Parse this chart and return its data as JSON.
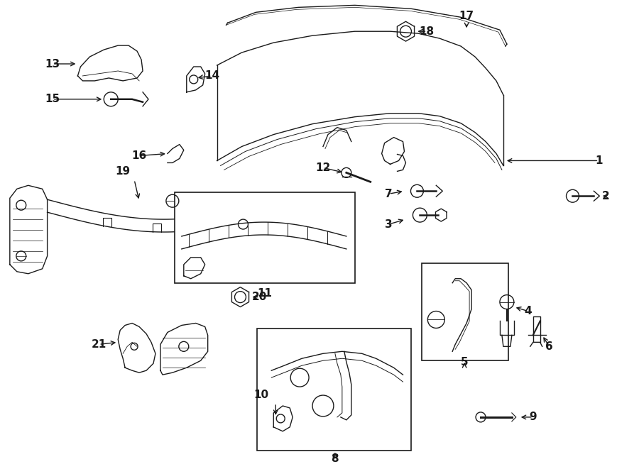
{
  "bg_color": "#ffffff",
  "line_color": "#1a1a1a",
  "fig_width": 9.0,
  "fig_height": 6.61,
  "lw": 1.0,
  "font_size": 11
}
